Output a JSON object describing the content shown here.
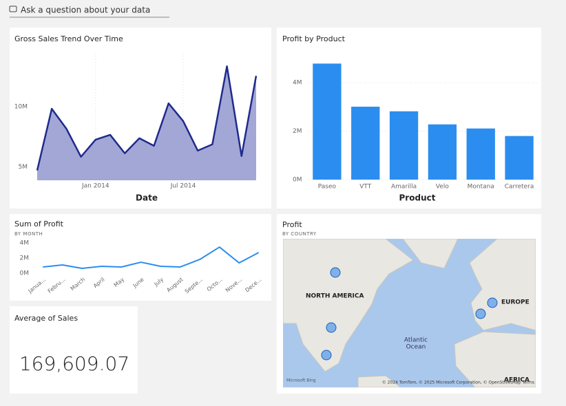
{
  "qa_prompt": "Ask a question about your data",
  "chart_data": [
    {
      "type": "area",
      "title": "Gross Sales Trend Over Time",
      "x_label": "Date",
      "x": [
        "Sep 2013",
        "Oct 2013",
        "Nov 2013",
        "Dec 2013",
        "Jan 2014",
        "Feb 2014",
        "Mar 2014",
        "Apr 2014",
        "May 2014",
        "Jun 2014",
        "Jul 2014",
        "Aug 2014",
        "Sep 2014",
        "Oct 2014",
        "Nov 2014",
        "Dec 2014"
      ],
      "xticks": [
        "Jan 2014",
        "Jul 2014"
      ],
      "values": [
        4.72,
        9.83,
        8.18,
        5.85,
        7.27,
        7.67,
        6.14,
        7.39,
        6.76,
        10.28,
        8.81,
        6.36,
        6.88,
        13.35,
        5.91,
        12.56
      ],
      "color": "#a3a7d6",
      "line_color": "#1f2a8c",
      "ylim": [
        3.9,
        14.4
      ],
      "yticks": [
        {
          "value": 5,
          "label": "5M"
        },
        {
          "value": 10,
          "label": "10M"
        }
      ],
      "grid": true
    },
    {
      "type": "bar",
      "title": "Profit by Product",
      "x_label": "Product",
      "categories": [
        "Paseo",
        "VTT",
        "Amarilla",
        "Velo",
        "Montana",
        "Carretera"
      ],
      "values": [
        4.79,
        3.01,
        2.82,
        2.28,
        2.11,
        1.8
      ],
      "color": "#2b8def",
      "ylim": [
        0,
        5
      ],
      "yticks": [
        {
          "value": 0,
          "label": "0M"
        },
        {
          "value": 2,
          "label": "2M"
        },
        {
          "value": 4,
          "label": "4M"
        }
      ],
      "grid": true
    },
    {
      "type": "line",
      "title": "Sum of Profit",
      "subtitle": "BY MONTH",
      "categories": [
        "Janua...",
        "Febru...",
        "March",
        "April",
        "May",
        "June",
        "July",
        "August",
        "Septe...",
        "Octo...",
        "Nove...",
        "Dece..."
      ],
      "values": [
        0.82,
        1.09,
        0.64,
        0.91,
        0.82,
        1.45,
        0.91,
        0.82,
        1.82,
        3.45,
        1.36,
        2.73
      ],
      "color": "#2b8def",
      "ylim": [
        0,
        4
      ],
      "yticks": [
        {
          "value": 0,
          "label": "0M"
        },
        {
          "value": 2,
          "label": "2M"
        },
        {
          "value": 4,
          "label": "4M"
        }
      ],
      "grid": false
    }
  ],
  "card": {
    "title": "Average of Sales",
    "value": "169,609.07"
  },
  "map": {
    "title": "Profit",
    "subtitle": "BY COUNTRY",
    "labels": [
      "NORTH AMERICA",
      "EUROPE",
      "Atlantic",
      "Ocean",
      "AFRICA"
    ],
    "attribution": "© 2024 TomTom, © 2025 Microsoft Corporation, © OpenStreetMap Terms",
    "provider": "Microsoft Bing"
  }
}
